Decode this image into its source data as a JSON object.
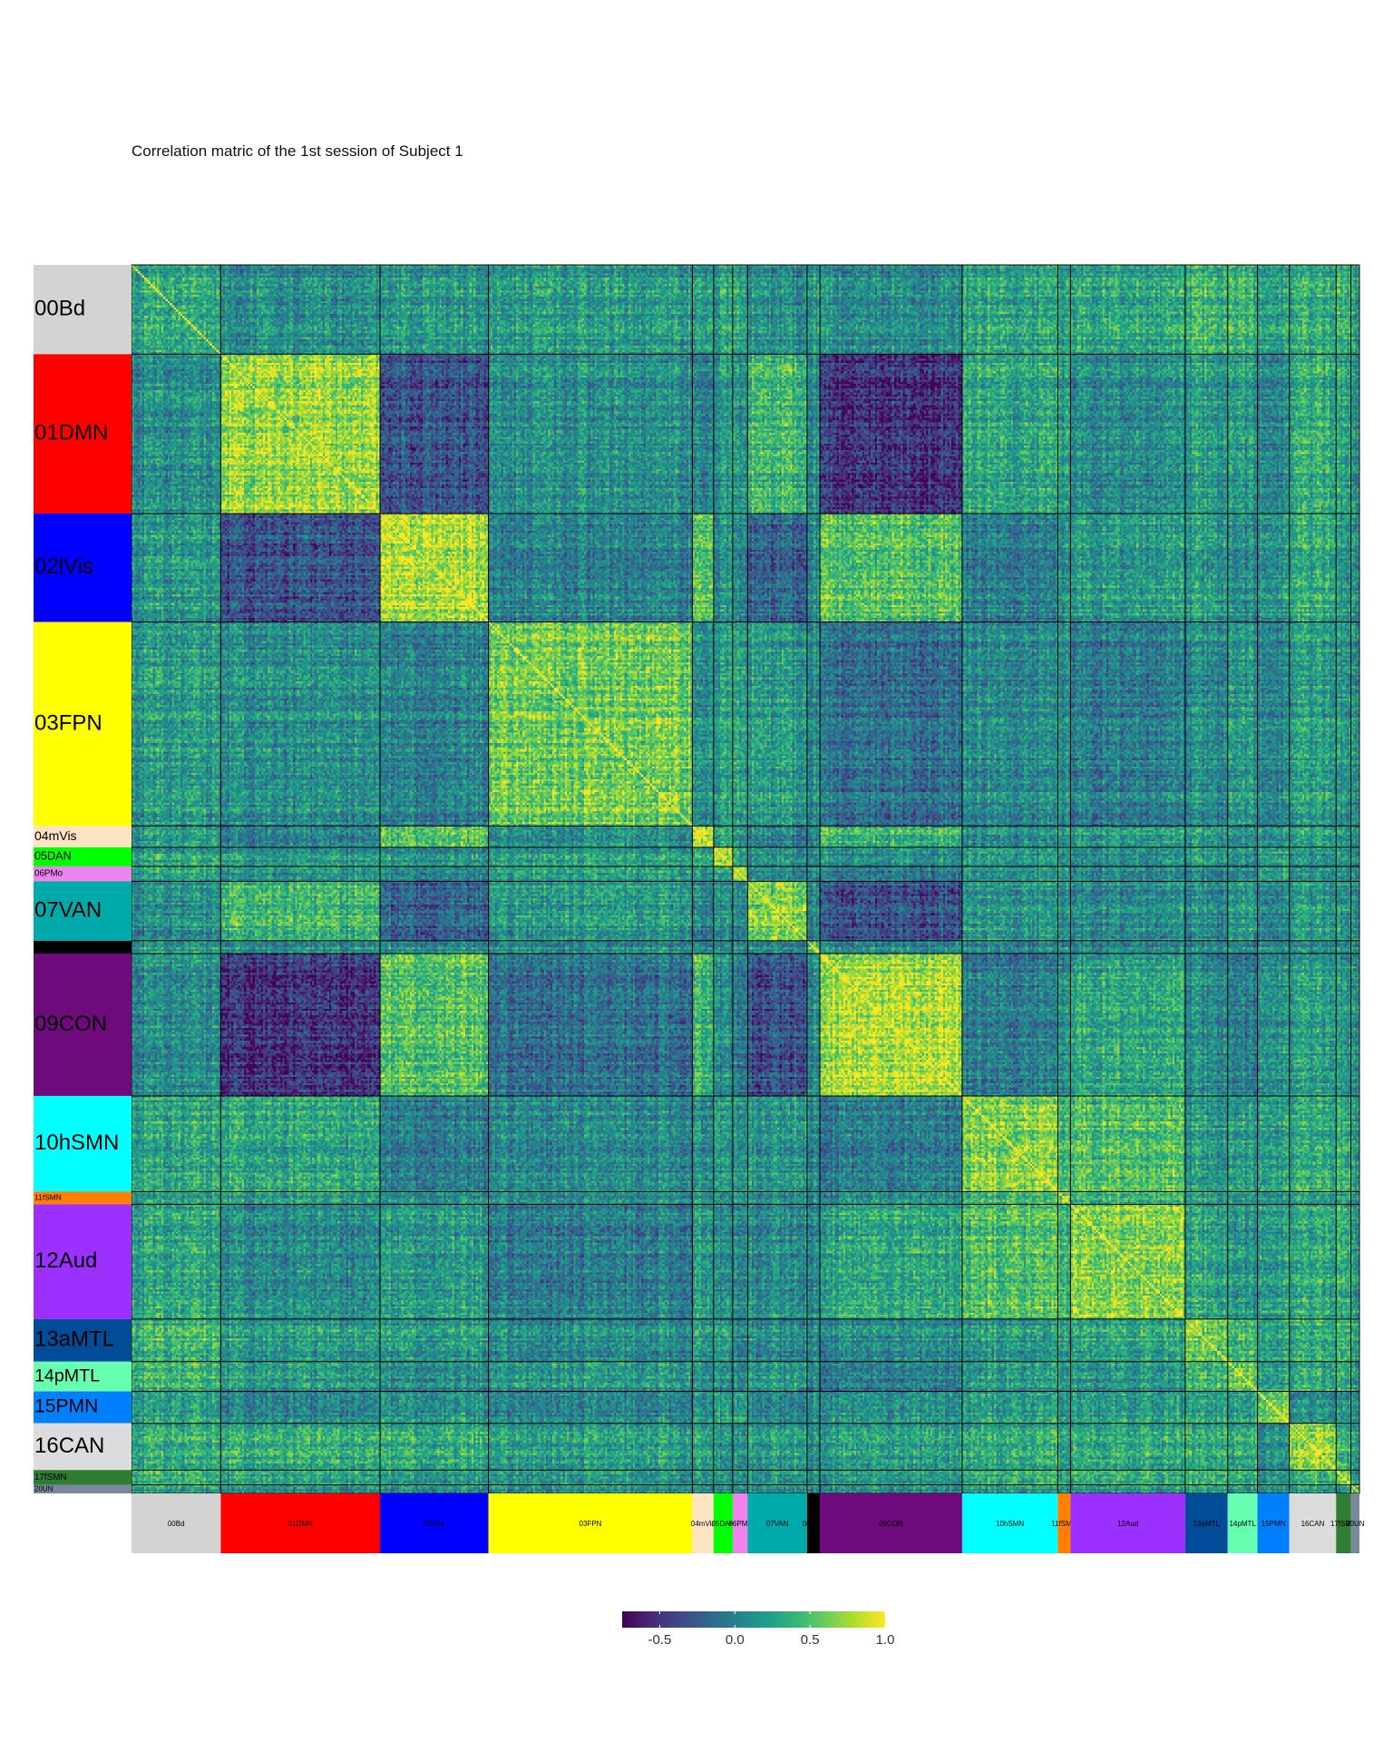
{
  "chart_data": {
    "type": "heatmap",
    "title": "Correlation matric of the 1st session of Subject 1",
    "xlabel": "",
    "ylabel": "",
    "value_range": [
      -0.75,
      1.0
    ],
    "colormap": "viridis",
    "diagonal_value": 1.0,
    "networks": [
      {
        "label": "00Bd",
        "color": "#d3d3d3",
        "size": 42
      },
      {
        "label": "01DMN",
        "color": "#ff0000",
        "size": 75
      },
      {
        "label": "02lVis",
        "color": "#0000ff",
        "size": 51
      },
      {
        "label": "03FPN",
        "color": "#ffff00",
        "size": 96
      },
      {
        "label": "04mVis",
        "color": "#ffe4c4",
        "size": 10
      },
      {
        "label": "05DAN",
        "color": "#00ff00",
        "size": 9
      },
      {
        "label": "06PMo",
        "color": "#ee82ee",
        "size": 7
      },
      {
        "label": "07VAN",
        "color": "#00aaaa",
        "size": 28
      },
      {
        "label": "08SLC",
        "color": "#000000",
        "size": 6
      },
      {
        "label": "09CON",
        "color": "#6e0a7c",
        "size": 67
      },
      {
        "label": "10hSMN",
        "color": "#00ffff",
        "size": 45
      },
      {
        "label": "11fSMN",
        "color": "#ff7f00",
        "size": 6
      },
      {
        "label": "12Aud",
        "color": "#9b30ff",
        "size": 54
      },
      {
        "label": "13aMTL",
        "color": "#004c99",
        "size": 20
      },
      {
        "label": "14pMTL",
        "color": "#66ffb2",
        "size": 14
      },
      {
        "label": "15PMN",
        "color": "#0080ff",
        "size": 15
      },
      {
        "label": "16CAN",
        "color": "#dcdcdc",
        "size": 22
      },
      {
        "label": "17fSMN",
        "color": "#2e7d32",
        "size": 7
      },
      {
        "label": "20UN",
        "color": "#778899",
        "size": 4
      }
    ],
    "block_mean_correlation": [
      [
        0.3,
        0.1,
        0.2,
        0.2,
        0.2,
        0.2,
        0.2,
        0.1,
        0.2,
        0.1,
        0.3,
        0.2,
        0.3,
        0.4,
        0.4,
        0.2,
        0.3,
        0.3,
        0.2
      ],
      [
        0.1,
        0.7,
        -0.3,
        0.1,
        0.0,
        0.1,
        0.1,
        0.4,
        0.1,
        -0.5,
        0.3,
        0.2,
        0.1,
        0.2,
        0.2,
        0.0,
        0.3,
        0.2,
        0.1
      ],
      [
        0.2,
        -0.3,
        0.8,
        0.0,
        0.5,
        0.1,
        0.0,
        -0.2,
        0.1,
        0.5,
        0.0,
        0.1,
        0.2,
        0.2,
        0.1,
        0.1,
        0.3,
        0.1,
        0.1
      ],
      [
        0.2,
        0.1,
        0.0,
        0.6,
        0.1,
        0.2,
        0.2,
        0.2,
        0.1,
        -0.1,
        0.1,
        0.1,
        0.0,
        0.1,
        0.2,
        0.0,
        0.2,
        0.1,
        0.1
      ],
      [
        0.2,
        0.0,
        0.5,
        0.1,
        0.8,
        0.2,
        0.1,
        0.0,
        0.1,
        0.4,
        0.1,
        0.1,
        0.2,
        0.2,
        0.1,
        0.1,
        0.2,
        0.1,
        0.1
      ],
      [
        0.2,
        0.1,
        0.1,
        0.2,
        0.2,
        0.7,
        0.2,
        0.1,
        0.1,
        0.1,
        0.2,
        0.1,
        0.1,
        0.2,
        0.1,
        0.2,
        0.1,
        0.1,
        0.1
      ],
      [
        0.2,
        0.1,
        0.0,
        0.2,
        0.1,
        0.2,
        0.7,
        0.1,
        0.1,
        0.0,
        0.2,
        0.2,
        0.1,
        0.1,
        0.1,
        0.2,
        0.1,
        0.1,
        0.1
      ],
      [
        0.1,
        0.4,
        -0.2,
        0.2,
        0.0,
        0.1,
        0.1,
        0.7,
        0.1,
        -0.3,
        0.2,
        0.1,
        0.1,
        0.1,
        0.2,
        0.0,
        0.2,
        0.1,
        0.1
      ],
      [
        0.2,
        0.1,
        0.1,
        0.1,
        0.1,
        0.1,
        0.1,
        0.1,
        0.6,
        0.1,
        0.1,
        0.1,
        0.1,
        0.1,
        0.1,
        0.1,
        0.1,
        0.1,
        0.1
      ],
      [
        0.1,
        -0.5,
        0.5,
        -0.1,
        0.4,
        0.1,
        0.0,
        -0.3,
        0.1,
        0.8,
        0.0,
        0.1,
        0.3,
        0.1,
        0.0,
        0.1,
        0.2,
        0.1,
        0.1
      ],
      [
        0.3,
        0.3,
        0.0,
        0.1,
        0.1,
        0.2,
        0.2,
        0.2,
        0.1,
        0.0,
        0.7,
        0.4,
        0.5,
        0.2,
        0.2,
        0.2,
        0.3,
        0.3,
        0.2
      ],
      [
        0.2,
        0.2,
        0.1,
        0.1,
        0.1,
        0.1,
        0.2,
        0.1,
        0.1,
        0.1,
        0.4,
        0.6,
        0.4,
        0.2,
        0.2,
        0.1,
        0.2,
        0.2,
        0.1
      ],
      [
        0.3,
        0.1,
        0.2,
        0.0,
        0.2,
        0.1,
        0.1,
        0.1,
        0.1,
        0.3,
        0.5,
        0.4,
        0.7,
        0.3,
        0.2,
        0.2,
        0.3,
        0.3,
        0.2
      ],
      [
        0.4,
        0.2,
        0.2,
        0.1,
        0.2,
        0.2,
        0.1,
        0.1,
        0.1,
        0.1,
        0.2,
        0.2,
        0.3,
        0.6,
        0.4,
        0.2,
        0.3,
        0.3,
        0.2
      ],
      [
        0.4,
        0.2,
        0.1,
        0.2,
        0.1,
        0.1,
        0.1,
        0.2,
        0.1,
        0.0,
        0.2,
        0.2,
        0.2,
        0.4,
        0.6,
        0.2,
        0.3,
        0.3,
        0.2
      ],
      [
        0.2,
        0.0,
        0.1,
        0.0,
        0.1,
        0.2,
        0.2,
        0.0,
        0.1,
        0.1,
        0.2,
        0.1,
        0.2,
        0.2,
        0.2,
        0.6,
        0.1,
        0.1,
        0.1
      ],
      [
        0.3,
        0.3,
        0.3,
        0.2,
        0.2,
        0.1,
        0.1,
        0.2,
        0.1,
        0.2,
        0.3,
        0.2,
        0.3,
        0.3,
        0.3,
        0.1,
        0.7,
        0.3,
        0.2
      ],
      [
        0.3,
        0.2,
        0.1,
        0.1,
        0.1,
        0.1,
        0.1,
        0.1,
        0.1,
        0.1,
        0.3,
        0.2,
        0.3,
        0.3,
        0.3,
        0.1,
        0.3,
        0.6,
        0.2
      ],
      [
        0.2,
        0.1,
        0.1,
        0.1,
        0.1,
        0.1,
        0.1,
        0.1,
        0.1,
        0.1,
        0.2,
        0.1,
        0.2,
        0.2,
        0.2,
        0.1,
        0.2,
        0.2,
        0.5
      ]
    ],
    "legend": {
      "position": "bottom",
      "ticks": [
        -0.5,
        0.0,
        0.5,
        1.0
      ],
      "tick_labels": [
        "-0.5",
        "0.0",
        "0.5",
        "1.0"
      ]
    }
  }
}
